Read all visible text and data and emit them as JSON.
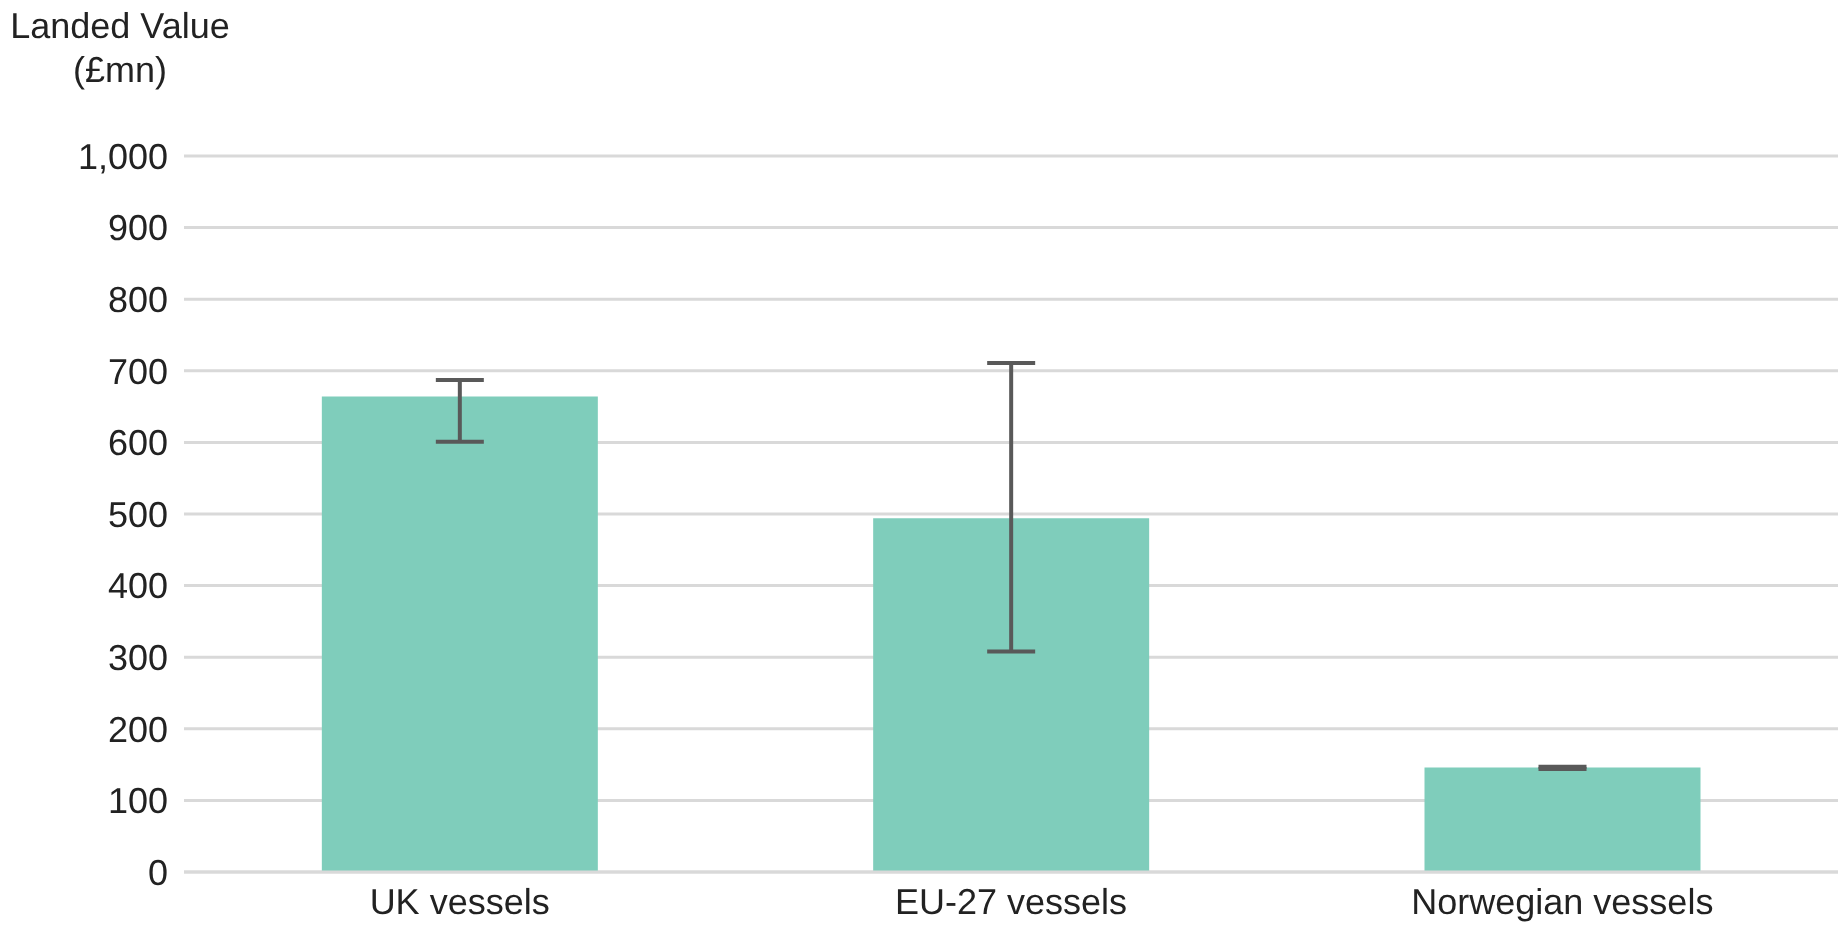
{
  "chart_data": {
    "type": "bar",
    "ylabel": "Landed Value (£mn)",
    "categories": [
      "UK vessels",
      "EU-27 vessels",
      "Norwegian vessels"
    ],
    "values": [
      664,
      494,
      146
    ],
    "color": "#7fcdbb",
    "errors": [
      [
        601,
        687
      ],
      [
        308,
        711
      ],
      [
        144,
        147
      ]
    ],
    "ylim": [
      0,
      1000
    ],
    "yticks": [
      0,
      100,
      200,
      300,
      400,
      500,
      600,
      700,
      800,
      900,
      {
        "value": 1000,
        "label": "1,000"
      }
    ],
    "grid": "y",
    "legend": false
  }
}
